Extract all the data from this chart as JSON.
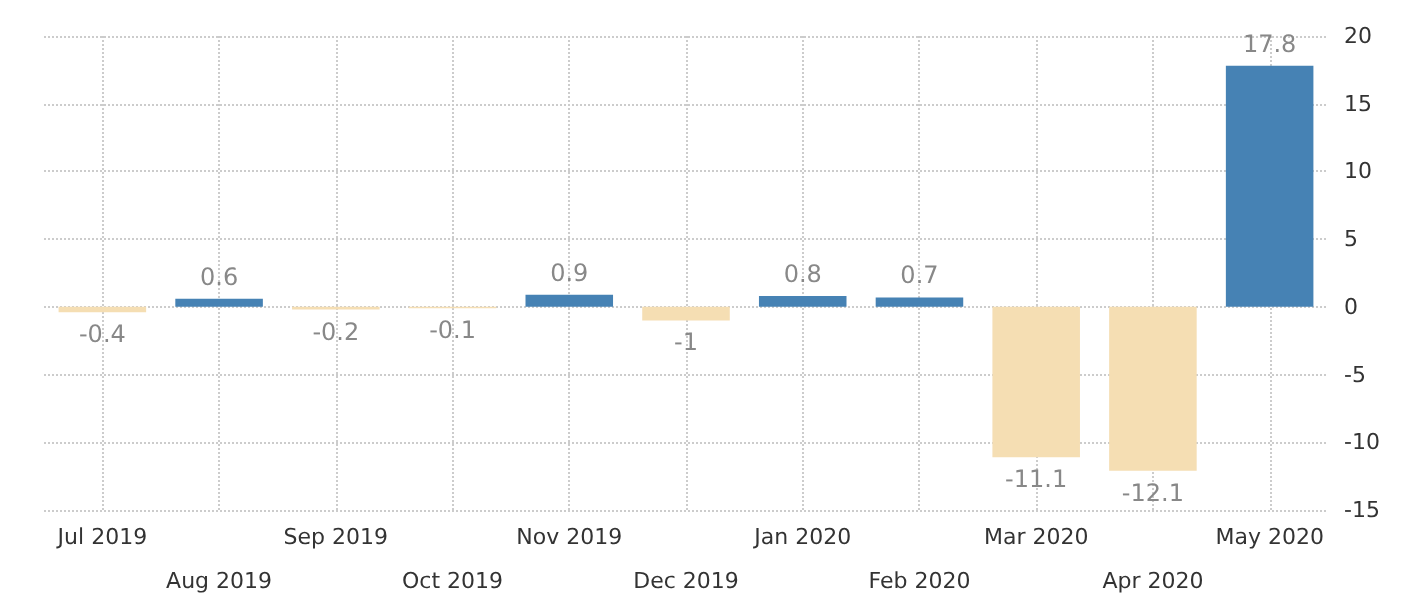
{
  "chart_data": {
    "type": "bar",
    "categories": [
      "Jul 2019",
      "Aug 2019",
      "Sep 2019",
      "Oct 2019",
      "Nov 2019",
      "Dec 2019",
      "Jan 2020",
      "Feb 2020",
      "Mar 2020",
      "Apr 2020",
      "May 2020"
    ],
    "values": [
      -0.4,
      0.6,
      -0.2,
      -0.1,
      0.9,
      -1,
      0.8,
      0.7,
      -11.1,
      -12.1,
      17.8
    ],
    "colors": [
      "#f5deb3",
      "#4682b4",
      "#f5deb3",
      "#f5deb3",
      "#4682b4",
      "#f5deb3",
      "#4682b4",
      "#4682b4",
      "#f5deb3",
      "#f5deb3",
      "#4682b4"
    ],
    "ylim": [
      -15,
      20
    ],
    "yticks": [
      -15,
      -10,
      -5,
      0,
      5,
      10,
      15,
      20
    ],
    "grid": true,
    "data_labels": true
  }
}
